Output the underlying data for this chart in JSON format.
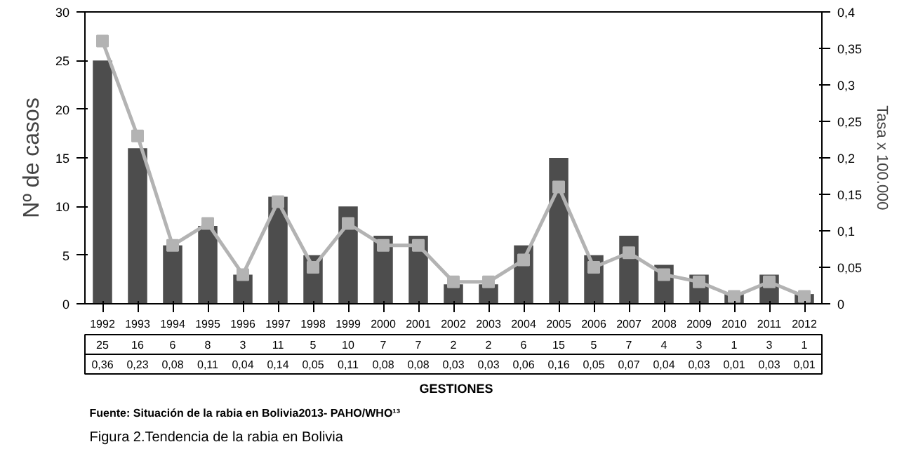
{
  "chart_data": {
    "type": "bar",
    "categories": [
      "1992",
      "1993",
      "1994",
      "1995",
      "1996",
      "1997",
      "1998",
      "1999",
      "2000",
      "2001",
      "2002",
      "2003",
      "2004",
      "2005",
      "2006",
      "2007",
      "2008",
      "2009",
      "2010",
      "2011",
      "2012"
    ],
    "series": [
      {
        "color": "#4d4d4d",
        "values": [
          25,
          16,
          6,
          8,
          3,
          11,
          5,
          10,
          7,
          7,
          2,
          2,
          6,
          15,
          5,
          7,
          4,
          3,
          1,
          3,
          1
        ]
      },
      {
        "type": "line",
        "axis": "y2",
        "color": "#b3b3b3",
        "marker": "square",
        "values": [
          0.36,
          0.23,
          0.08,
          0.11,
          0.04,
          0.14,
          0.05,
          0.11,
          0.08,
          0.08,
          0.03,
          0.03,
          0.06,
          0.16,
          0.05,
          0.07,
          0.04,
          0.03,
          0.01,
          0.03,
          0.01
        ],
        "value_labels": [
          "0,36",
          "0,23",
          "0,08",
          "0,11",
          "0,04",
          "0,14",
          "0,05",
          "0,11",
          "0,08",
          "0,08",
          "0,03",
          "0,03",
          "0,06",
          "0,16",
          "0,05",
          "0,07",
          "0,04",
          "0,03",
          "0,01",
          "0,03",
          "0,01"
        ]
      }
    ],
    "data_labels": true,
    "ylim": [
      0,
      30
    ],
    "yticks": [
      0,
      5,
      10,
      15,
      20,
      25,
      30
    ],
    "y2lim": [
      0,
      0.4
    ],
    "y2ticks": [
      {
        "value": 0,
        "label": "0"
      },
      {
        "value": 0.05,
        "label": "0,05"
      },
      {
        "value": 0.1,
        "label": "0,1"
      },
      {
        "value": 0.15,
        "label": "0,15"
      },
      {
        "value": 0.2,
        "label": "0,2"
      },
      {
        "value": 0.25,
        "label": "0,25"
      },
      {
        "value": 0.3,
        "label": "0,3"
      },
      {
        "value": 0.35,
        "label": "0,35"
      },
      {
        "value": 0.4,
        "label": "0,4"
      }
    ],
    "ylabel": "Nº de casos",
    "y2label": "Tasa x 100.000",
    "xlabel": "GESTIONES",
    "grid": false,
    "annotations": [
      "Fuente: Situación de la rabia en Bolivia2013- PAHO/WHO¹³",
      "Figura 2.Tendencia de la rabia en Bolivia"
    ]
  }
}
